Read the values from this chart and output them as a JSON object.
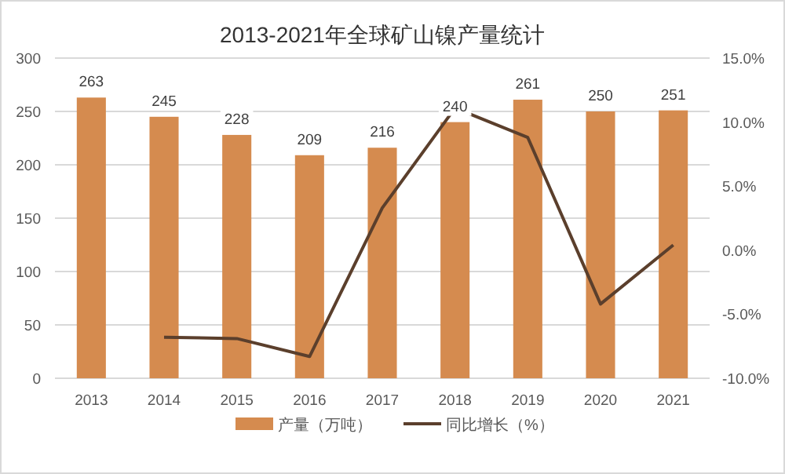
{
  "chart_data": {
    "type": "bar",
    "title": "2013-2021年全球矿山镍产量统计",
    "categories": [
      "2013",
      "2014",
      "2015",
      "2016",
      "2017",
      "2018",
      "2019",
      "2020",
      "2021"
    ],
    "series": [
      {
        "name": "产量（万吨）",
        "color": "#d58b4f",
        "values": [
          263,
          245,
          228,
          209,
          216,
          240,
          261,
          250,
          251
        ],
        "value_labels": [
          "263",
          "245",
          "228",
          "209",
          "216",
          "240",
          "261",
          "250",
          "251"
        ]
      },
      {
        "name": "同比增长（%）",
        "type": "line",
        "axis": "y2",
        "color": "#5b3f2c",
        "values": [
          null,
          -6.8,
          -6.9,
          -8.3,
          3.3,
          11.1,
          8.8,
          -4.2,
          0.4
        ]
      }
    ],
    "ylim": [
      0,
      300
    ],
    "yticks": [
      0,
      50,
      100,
      150,
      200,
      250,
      300
    ],
    "y2lim": [
      -10,
      15
    ],
    "y2ticks": [
      {
        "value": -10,
        "label": "-10.0%"
      },
      {
        "value": -5,
        "label": "-5.0%"
      },
      {
        "value": 0,
        "label": "0.0%"
      },
      {
        "value": 5,
        "label": "5.0%"
      },
      {
        "value": 10,
        "label": "10.0%"
      },
      {
        "value": 15,
        "label": "15.0%"
      }
    ],
    "grid": "y",
    "legend": "bottom",
    "marker": "none",
    "line_style": "solid"
  }
}
